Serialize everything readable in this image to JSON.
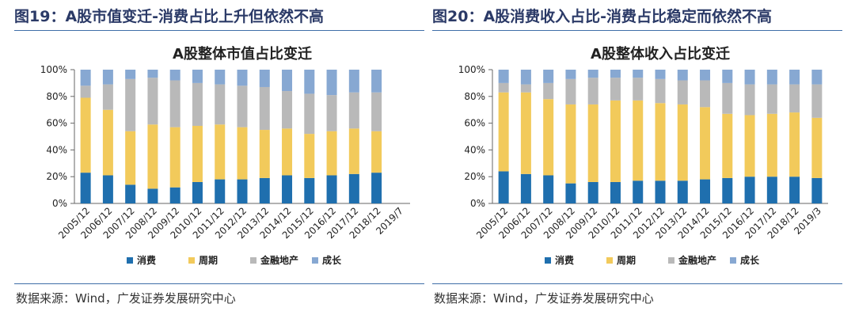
{
  "left": {
    "figure_label": "图19：",
    "figure_title": "A股市值变迁-消费占比上升但依然不高",
    "source": "数据来源：Wind，广发证券发展研究中心"
  },
  "right": {
    "figure_label": "图20：",
    "figure_title": "A股消费收入占比-消费占比稳定而依然不高",
    "source": "数据来源：Wind，广发证券发展研究中心"
  },
  "colors": {
    "消费": "#1f6fae",
    "周期": "#f2ca5b",
    "金融地产": "#b9b9b9",
    "成长": "#87a8d2",
    "frame": "#3f6ea8"
  },
  "chart_data": [
    {
      "type": "bar",
      "stacked": true,
      "title": "A股整体市值占比变迁",
      "categories": [
        "2005/12",
        "2006/12",
        "2007/12",
        "2008/12",
        "2009/12",
        "2010/12",
        "2011/12",
        "2012/12",
        "2013/12",
        "2014/12",
        "2015/12",
        "2016/12",
        "2017/12",
        "2018/12",
        "2019/7"
      ],
      "yticks": [
        "0%",
        "20%",
        "40%",
        "60%",
        "80%",
        "100%"
      ],
      "ylim": [
        0,
        100
      ],
      "legend_position": "bottom",
      "grid": false,
      "series": [
        {
          "name": "消费",
          "values": [
            23,
            21,
            14,
            11,
            12,
            16,
            18,
            18,
            19,
            21,
            19,
            21,
            22,
            23,
            0
          ]
        },
        {
          "name": "周期",
          "values": [
            56,
            49,
            40,
            48,
            45,
            42,
            41,
            39,
            36,
            35,
            33,
            33,
            34,
            31,
            0
          ]
        },
        {
          "name": "金融地产",
          "values": [
            9,
            19,
            39,
            35,
            35,
            32,
            30,
            31,
            32,
            28,
            30,
            27,
            27,
            29,
            0
          ]
        },
        {
          "name": "成长",
          "values": [
            12,
            11,
            7,
            6,
            8,
            10,
            11,
            12,
            13,
            16,
            18,
            19,
            17,
            17,
            0
          ]
        }
      ]
    },
    {
      "type": "bar",
      "stacked": true,
      "title": "A股整体收入占比变迁",
      "categories": [
        "2005/12",
        "2006/12",
        "2007/12",
        "2008/12",
        "2009/12",
        "2010/12",
        "2011/12",
        "2012/12",
        "2013/12",
        "2014/12",
        "2015/12",
        "2016/12",
        "2017/12",
        "2018/12",
        "2019/3"
      ],
      "yticks": [
        "0%",
        "20%",
        "40%",
        "60%",
        "80%",
        "100%"
      ],
      "ylim": [
        0,
        100
      ],
      "legend_position": "bottom",
      "grid": false,
      "series": [
        {
          "name": "消费",
          "values": [
            24,
            22,
            21,
            15,
            16,
            16,
            17,
            17,
            17,
            18,
            19,
            20,
            20,
            20,
            19
          ]
        },
        {
          "name": "周期",
          "values": [
            59,
            61,
            57,
            59,
            58,
            61,
            60,
            58,
            57,
            54,
            48,
            46,
            47,
            48,
            45
          ]
        },
        {
          "name": "金融地产",
          "values": [
            7,
            6,
            12,
            19,
            20,
            17,
            17,
            18,
            18,
            20,
            23,
            23,
            22,
            21,
            25
          ]
        },
        {
          "name": "成长",
          "values": [
            10,
            11,
            10,
            7,
            6,
            6,
            6,
            7,
            8,
            8,
            10,
            11,
            11,
            11,
            11
          ]
        }
      ]
    }
  ]
}
